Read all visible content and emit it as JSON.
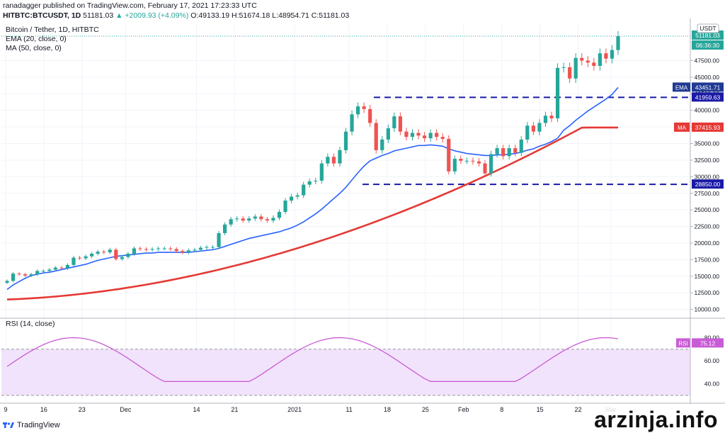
{
  "header": {
    "line1": "ranadagger published on TradingView.com, February 17, 2021 17:23:33 UTC",
    "symbol": "HITBTC:BTCUSDT, 1D",
    "last": "51181.03",
    "change": "▲ +2009.93 (+4.09%)",
    "ohlc": "O:49133.19 H:51674.18 L:48954.71 C:51181.03"
  },
  "legend": {
    "title": "Bitcoin / Tether, 1D, HITBTC",
    "ema": "EMA (20, close, 0)",
    "ma": "MA (50, close, 0)",
    "rsi": "RSI (14, close)"
  },
  "footer": {
    "brand": "TradingView",
    "watermark": "arzinja.info"
  },
  "colors": {
    "up": "#26a69a",
    "down": "#ef5350",
    "ema": "#2962ff",
    "ma": "#e53935",
    "level": "#1a1aa6",
    "rsi_line": "#c95cd6",
    "rsi_band": "#f1e3fb",
    "emaLabel": "#1f3a93"
  },
  "chart_data": {
    "type": "candlestick",
    "title": "Bitcoin / Tether, 1D, HITBTC",
    "currency": "USDT",
    "ylim": [
      9000,
      53000
    ],
    "y_ticks": [
      10000,
      12500,
      15000,
      17500,
      20000,
      22500,
      25000,
      27500,
      30000,
      32500,
      35000,
      37500,
      40000,
      42500,
      45000,
      47500
    ],
    "x_ticks": [
      {
        "label": "9",
        "day": 0
      },
      {
        "label": "16",
        "day": 7
      },
      {
        "label": "23",
        "day": 14
      },
      {
        "label": "Dec",
        "day": 22
      },
      {
        "label": "14",
        "day": 35
      },
      {
        "label": "21",
        "day": 42
      },
      {
        "label": "2021",
        "day": 53
      },
      {
        "label": "11",
        "day": 63
      },
      {
        "label": "18",
        "day": 70
      },
      {
        "label": "25",
        "day": 77
      },
      {
        "label": "Feb",
        "day": 84
      },
      {
        "label": "8",
        "day": 91
      },
      {
        "label": "15",
        "day": 98
      },
      {
        "label": "22",
        "day": 105
      },
      {
        "label": "Mar",
        "day": 111
      }
    ],
    "horizontal_levels": [
      41959.63,
      28850.0
    ],
    "labels": {
      "last_price": "51181.03",
      "countdown": "06:36:30",
      "ema_tag": "EMA",
      "ema_value": "43451.71",
      "level_upper": "41959.63",
      "ma_tag": "MA",
      "ma_value": "37415.93",
      "level_lower": "28850.00"
    },
    "closes": [
      14300,
      15400,
      15300,
      15100,
      15300,
      15800,
      15800,
      16000,
      16300,
      16200,
      16700,
      17800,
      17700,
      18000,
      18400,
      18700,
      18600,
      19000,
      17600,
      17900,
      18400,
      19200,
      19100,
      19000,
      19100,
      19200,
      19200,
      19100,
      18800,
      18600,
      18900,
      19000,
      19300,
      19400,
      19400,
      21500,
      22800,
      23600,
      23700,
      23400,
      23700,
      24000,
      23600,
      23400,
      23800,
      24700,
      26400,
      27000,
      27200,
      28800,
      29300,
      29400,
      32000,
      33000,
      32000,
      34000,
      36800,
      39400,
      40600,
      40200,
      38100,
      34000,
      35600,
      37300,
      39100,
      36800,
      36000,
      36600,
      36200,
      35800,
      36600,
      36000,
      35700,
      30800,
      32700,
      32400,
      32400,
      32300,
      32000,
      30500,
      33400,
      34300,
      33100,
      34300,
      33600,
      35600,
      37700,
      36800,
      38100,
      39200,
      38800,
      46400,
      46500,
      44800,
      47900,
      47500,
      47200,
      46700,
      48600,
      47800,
      49100,
      51181
    ],
    "ema20": [
      13000,
      13700,
      14200,
      14700,
      15100,
      15300,
      15500,
      15600,
      15800,
      16000,
      16200,
      16400,
      16600,
      16800,
      17100,
      17400,
      17600,
      17800,
      18000,
      18100,
      18200,
      18300,
      18400,
      18500,
      18500,
      18600,
      18600,
      18600,
      18600,
      18600,
      18600,
      18700,
      18800,
      18900,
      19000,
      19200,
      19500,
      19800,
      20100,
      20400,
      20700,
      20900,
      21100,
      21300,
      21500,
      21700,
      22000,
      22300,
      22700,
      23200,
      23800,
      24400,
      25100,
      25900,
      26700,
      27500,
      28400,
      29500,
      30600,
      31600,
      32400,
      32800,
      33200,
      33500,
      33900,
      34100,
      34300,
      34500,
      34700,
      34700,
      34800,
      34700,
      34600,
      34200,
      33900,
      33700,
      33500,
      33400,
      33300,
      33200,
      33200,
      33300,
      33300,
      33400,
      33500,
      33700,
      34000,
      34200,
      34600,
      34900,
      35300,
      35800,
      37000,
      37700,
      38500,
      39200,
      39900,
      40500,
      41100,
      41700,
      42400,
      43451
    ]
  }
}
